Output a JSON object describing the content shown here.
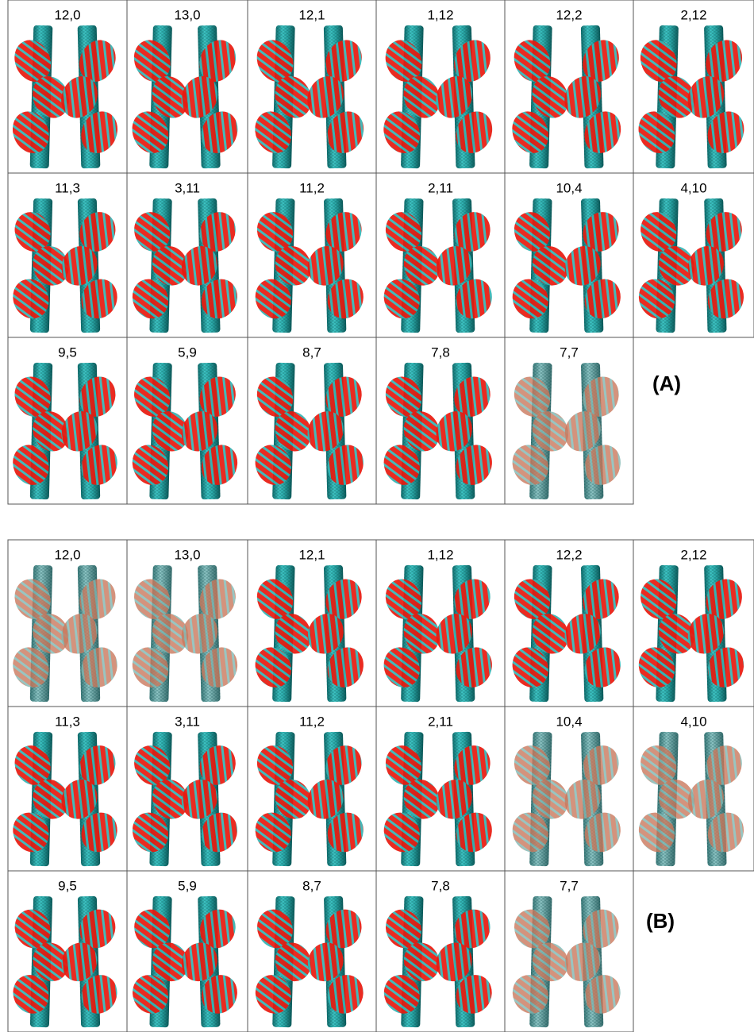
{
  "panels": [
    {
      "label": "(A)",
      "cells": [
        "12,0",
        "13,0",
        "12,1",
        "1,12",
        "12,2",
        "2,12",
        "11,3",
        "3,11",
        "11,2",
        "2,11",
        "10,4",
        "4,10",
        "9,5",
        "5,9",
        "8,7",
        "7,8",
        "7,7"
      ]
    },
    {
      "label": "(B)",
      "cells": [
        "12,0",
        "13,0",
        "12,1",
        "1,12",
        "12,2",
        "2,12",
        "11,3",
        "3,11",
        "11,2",
        "2,11",
        "10,4",
        "4,10",
        "9,5",
        "5,9",
        "8,7",
        "7,8",
        "7,7"
      ]
    }
  ]
}
